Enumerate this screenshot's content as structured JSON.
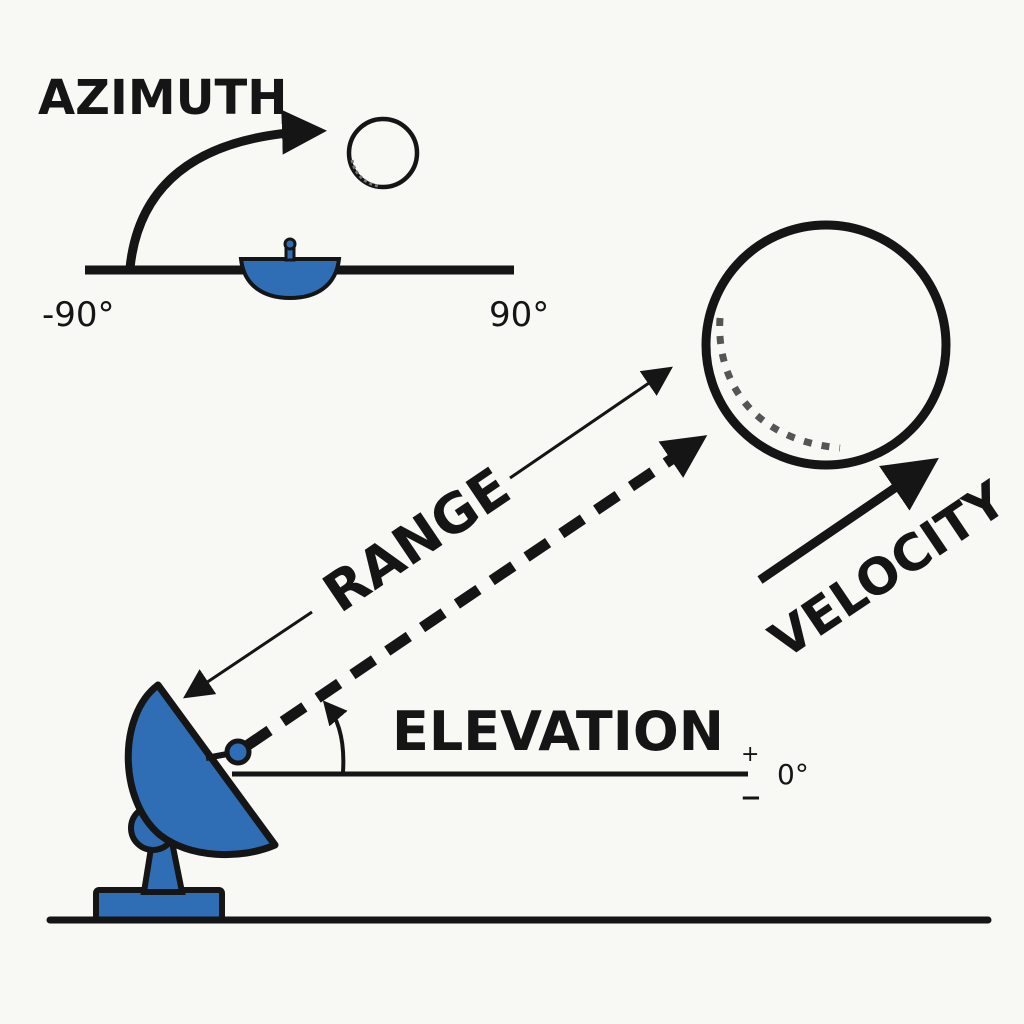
{
  "azimuth": {
    "label": "AZIMUTH",
    "min_label": "-90°",
    "max_label": "90°"
  },
  "range": {
    "label": "RANGE"
  },
  "velocity": {
    "label": "VELOCITY"
  },
  "elevation": {
    "label": "ELEVATION",
    "reference_label": "0°",
    "plus_sign": "+",
    "minus_sign": "−"
  },
  "colors": {
    "dish_fill": "#2f6db5",
    "ink": "#151515",
    "background": "#f8f8f5"
  },
  "icons": {
    "radar": "radar-dish-icon",
    "target": "target-circle-icon"
  }
}
